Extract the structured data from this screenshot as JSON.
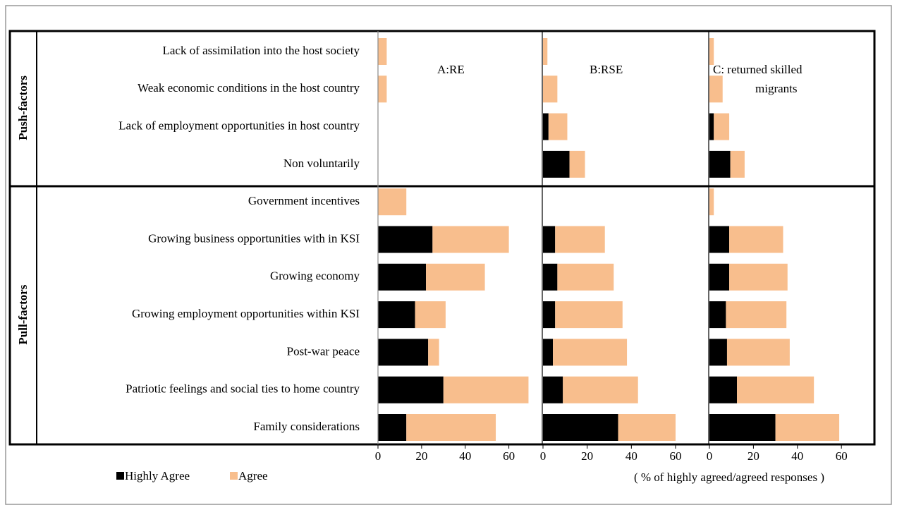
{
  "groups": [
    {
      "label": "Push-factors",
      "rows": [
        0,
        3
      ]
    },
    {
      "label": "Pull-factors",
      "rows": [
        4,
        10
      ]
    }
  ],
  "chart_data": [
    {
      "type": "bar",
      "orientation": "horizontal",
      "stacked": true,
      "title_lines": [
        "A:RE"
      ],
      "categories": [
        "Lack of assimilation into the host society",
        "Weak economic conditions in the host country",
        "Lack of employment opportunities in host country",
        "Non voluntarily",
        "Government incentives",
        "Growing business opportunities with in KSI",
        "Growing economy",
        "Growing employment opportunities within KSI",
        "Post-war peace",
        "Patriotic feelings and social ties to home country",
        "Family considerations"
      ],
      "series": [
        {
          "name": "Highly Agree",
          "color": "#000000",
          "values": [
            0,
            0,
            0,
            0,
            0,
            25,
            22,
            17,
            23,
            30,
            13
          ]
        },
        {
          "name": "Agree",
          "color": "#f8be8d",
          "values": [
            4,
            4,
            0,
            0,
            13,
            35,
            27,
            14,
            5,
            39,
            41
          ]
        }
      ],
      "xlim": [
        0,
        75
      ],
      "xticks": [
        0,
        20,
        40,
        60
      ]
    },
    {
      "type": "bar",
      "orientation": "horizontal",
      "stacked": true,
      "title_lines": [
        "B:RSE"
      ],
      "series": [
        {
          "color": "#000000",
          "values": [
            0,
            0,
            2.5,
            12,
            0,
            5.5,
            6.5,
            5.5,
            4.5,
            9,
            34
          ]
        },
        {
          "color": "#f8be8d",
          "values": [
            2,
            6.5,
            8.5,
            7,
            0,
            22.5,
            25.5,
            30.5,
            33.5,
            34,
            26
          ]
        }
      ],
      "xlim": [
        0,
        75
      ],
      "xticks": [
        0,
        20,
        40,
        60
      ]
    },
    {
      "type": "bar",
      "orientation": "horizontal",
      "stacked": true,
      "title_lines": [
        "C: returned skilled",
        "migrants"
      ],
      "series": [
        {
          "color": "#000000",
          "values": [
            0,
            0,
            2,
            9.5,
            0,
            9,
            9,
            7.5,
            8,
            12.5,
            30
          ]
        },
        {
          "color": "#f8be8d",
          "values": [
            2,
            6,
            7,
            6.5,
            2,
            24.5,
            26.5,
            27.5,
            28.5,
            35,
            29
          ]
        }
      ],
      "xlim": [
        0,
        75
      ],
      "xticks": [
        0,
        20,
        40,
        60
      ],
      "xlabel": "( % of highly agreed/agreed responses )"
    }
  ]
}
